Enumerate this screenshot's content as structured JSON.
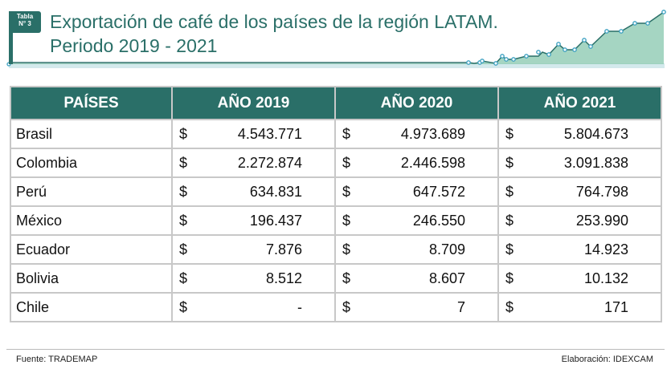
{
  "badge": {
    "line1": "Tabla",
    "line2": "N° 3"
  },
  "title": {
    "line1": "Exportación de café de los países de la región LATAM.",
    "line2": "Periodo 2019 - 2021"
  },
  "colors": {
    "accent": "#2a6f68",
    "border": "#c8c8c8"
  },
  "table": {
    "headers": [
      "PAÍSES",
      "AÑO 2019",
      "AÑO 2020",
      "AÑO 2021"
    ],
    "currency": "$",
    "rows": [
      {
        "country": "Brasil",
        "values": [
          "4.543.771",
          "4.973.689",
          "5.804.673"
        ]
      },
      {
        "country": "Colombia",
        "values": [
          "2.272.874",
          "2.446.598",
          "3.091.838"
        ]
      },
      {
        "country": "Perú",
        "values": [
          "634.831",
          "647.572",
          "764.798"
        ]
      },
      {
        "country": "México",
        "values": [
          "196.437",
          "246.550",
          "253.990"
        ]
      },
      {
        "country": "Ecuador",
        "values": [
          "7.876",
          "8.709",
          "14.923"
        ]
      },
      {
        "country": "Bolivia",
        "values": [
          "8.512",
          "8.607",
          "10.132"
        ]
      },
      {
        "country": "Chile",
        "values": [
          "-",
          "7",
          "171"
        ]
      }
    ]
  },
  "footer": {
    "source": "Fuente:  TRADEMAP",
    "credit": "Elaboración: IDEXCAM"
  }
}
